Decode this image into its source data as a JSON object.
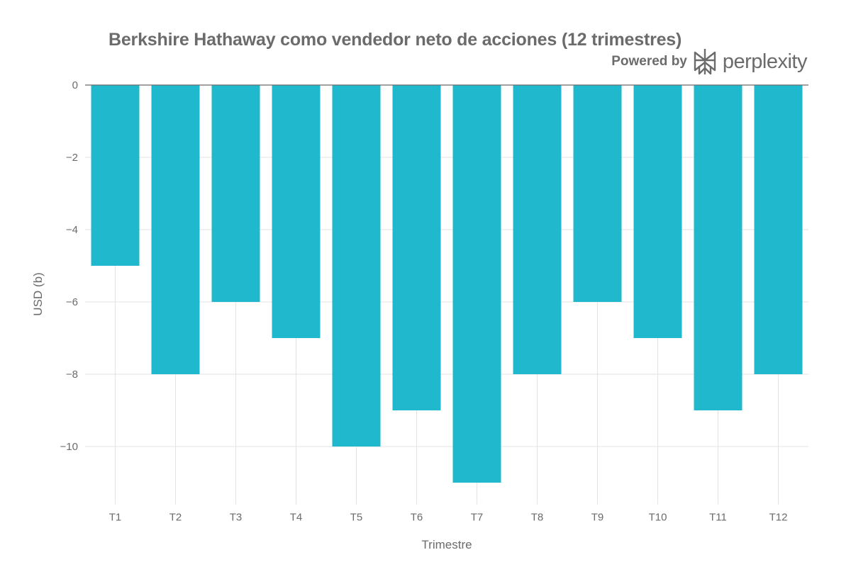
{
  "brand": {
    "powered_by": "Powered by",
    "name": "perplexity",
    "icon": "perplexity-logo-icon"
  },
  "chart_data": {
    "type": "bar",
    "title": "Berkshire Hathaway como vendedor neto de acciones (12 trimestres)",
    "xlabel": "Trimestre",
    "ylabel": "USD (b)",
    "categories": [
      "T1",
      "T2",
      "T3",
      "T4",
      "T5",
      "T6",
      "T7",
      "T8",
      "T9",
      "T10",
      "T11",
      "T12"
    ],
    "values": [
      -5,
      -8,
      -6,
      -7,
      -10,
      -9,
      -11,
      -8,
      -6,
      -7,
      -9,
      -8
    ],
    "ylim": [
      -11.6,
      0
    ],
    "yticks": [
      0,
      -2,
      -4,
      -6,
      -8,
      -10
    ],
    "ytick_labels": [
      "0",
      "−2",
      "−4",
      "−6",
      "−8",
      "−10"
    ],
    "grid": true,
    "bar_color": "#1fb8cd",
    "legend": "none"
  }
}
